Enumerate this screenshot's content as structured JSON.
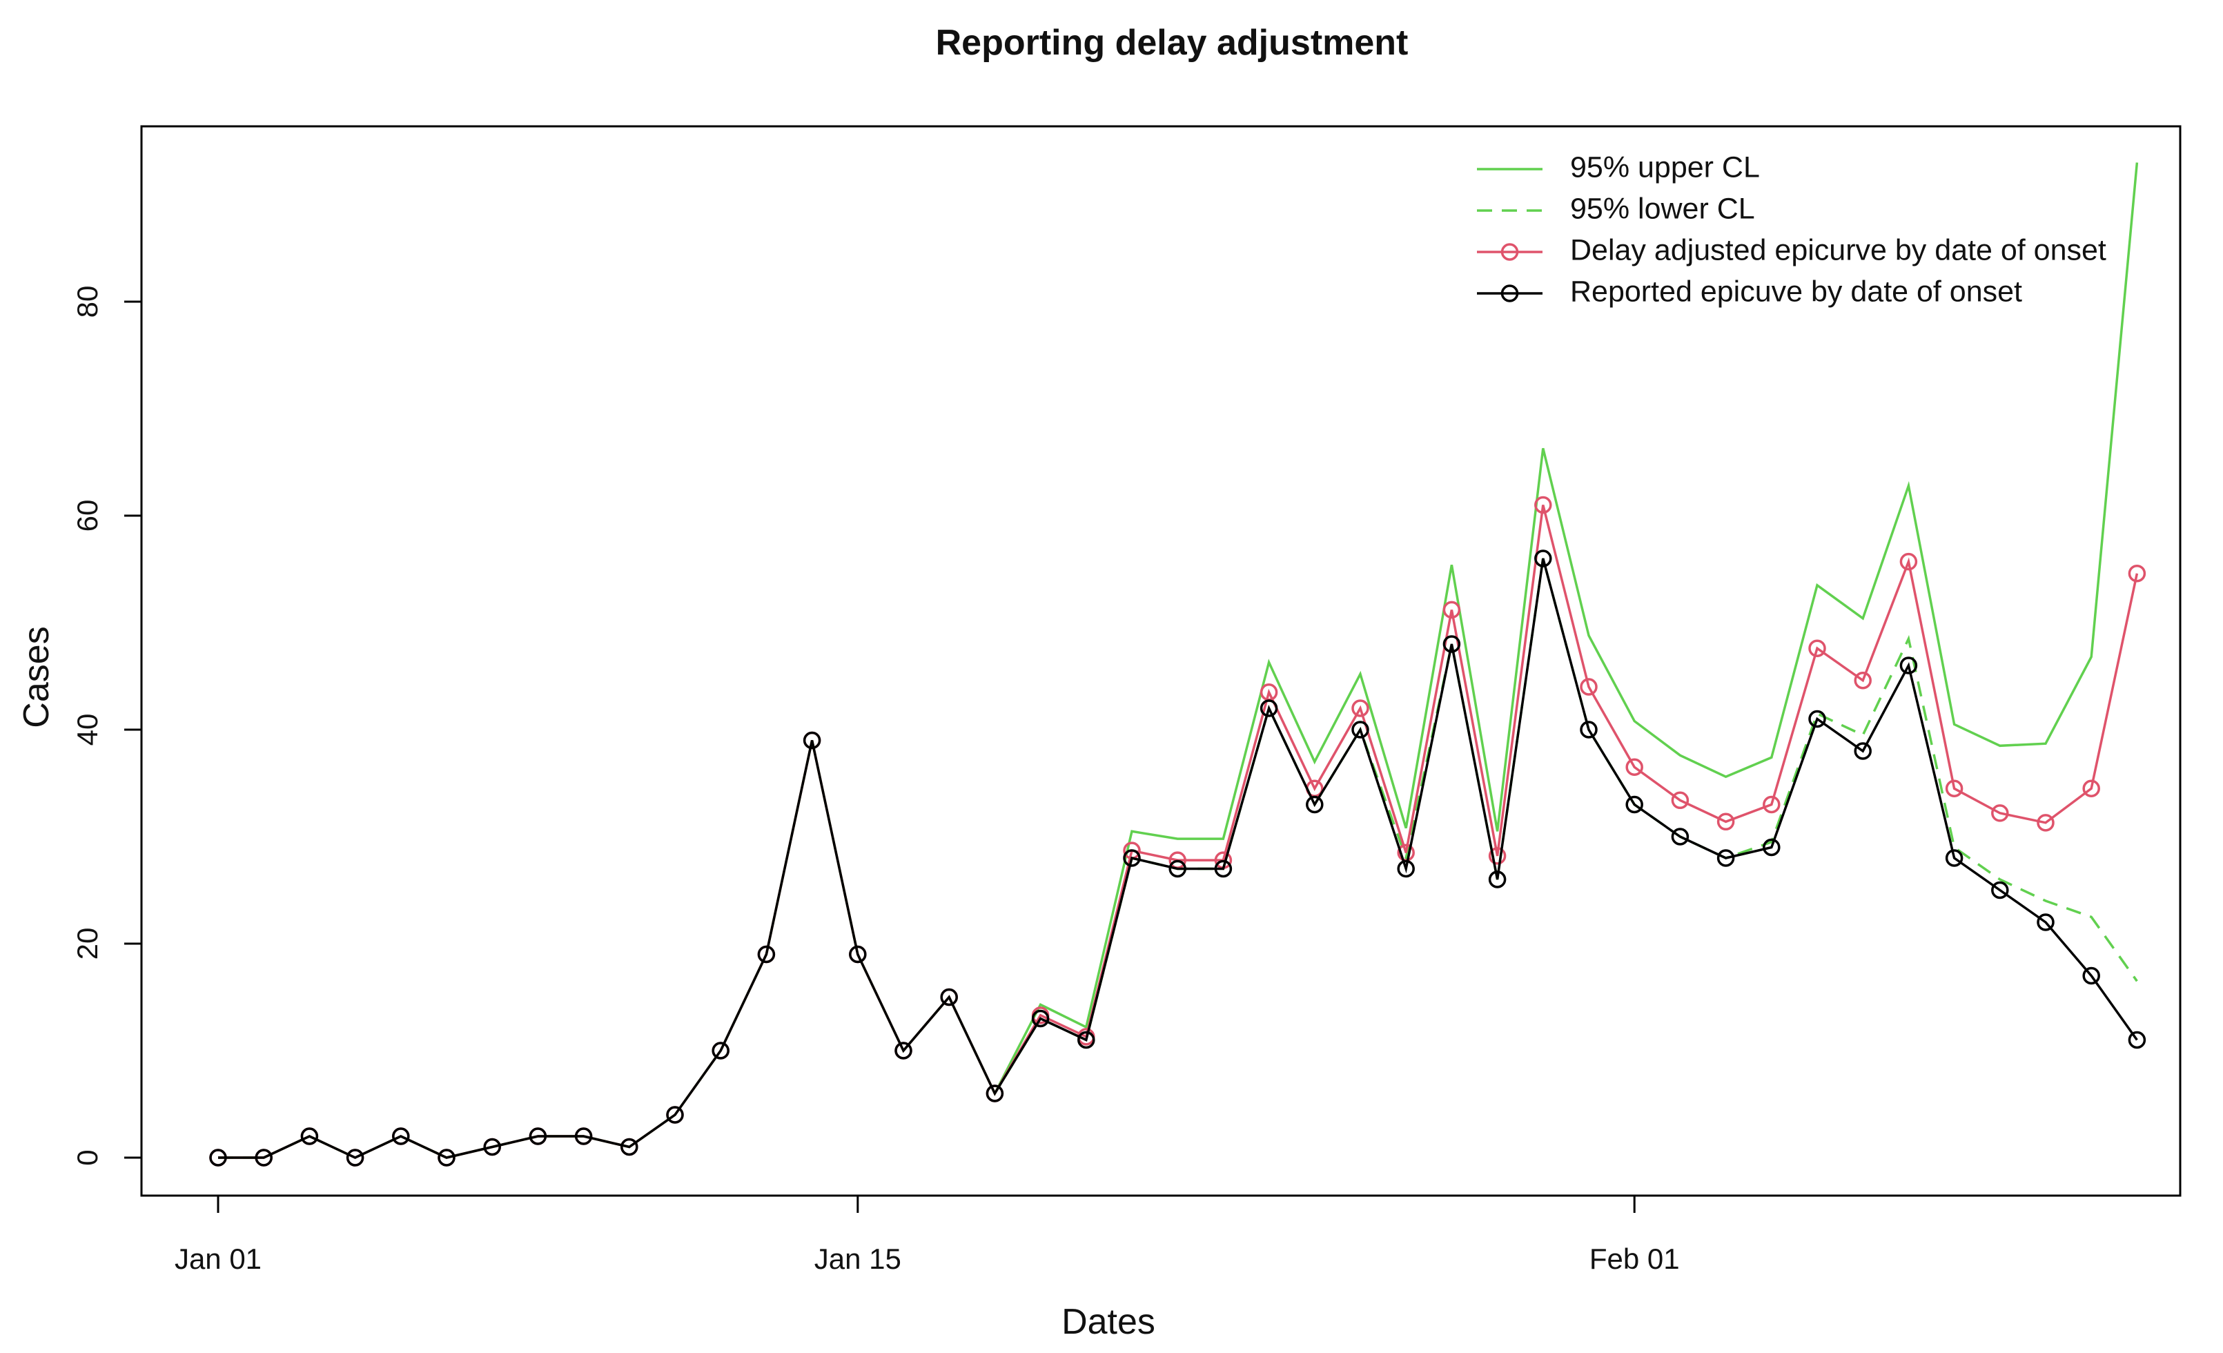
{
  "chart_data": {
    "type": "line",
    "title": "Reporting delay adjustment",
    "xlabel": "Dates",
    "ylabel": "Cases",
    "x_day_range": [
      1,
      43
    ],
    "ylim": [
      -4,
      96
    ],
    "x_ticks": [
      {
        "day": 1,
        "label": "Jan 01"
      },
      {
        "day": 15,
        "label": "Jan 15"
      },
      {
        "day": 32,
        "label": "Feb 01"
      }
    ],
    "y_ticks": [
      0,
      20,
      40,
      60,
      80
    ],
    "legend_position": "top-right",
    "series": [
      {
        "name": "95% upper CL",
        "color": "#61D04F",
        "line_style": "solid",
        "markers": false,
        "values": [
          0,
          0,
          2,
          0,
          2,
          0,
          1,
          2,
          2,
          1,
          4,
          10,
          19,
          39,
          19,
          10,
          15,
          6,
          14.3,
          12.2,
          30.5,
          29.8,
          29.8,
          46.3,
          37,
          45.2,
          30.8,
          55.4,
          30.5,
          66.3,
          48.8,
          40.8,
          37.6,
          35.6,
          37.4,
          53.5,
          50.4,
          62.8,
          40.5,
          38.5,
          38.7,
          46.8,
          93
        ]
      },
      {
        "name": "95% lower CL",
        "color": "#61D04F",
        "line_style": "dashed",
        "markers": false,
        "values": [
          0,
          0,
          2,
          0,
          2,
          0,
          1,
          2,
          2,
          1,
          4,
          10,
          19,
          39,
          19,
          10,
          15,
          6,
          13,
          11,
          28,
          27,
          27,
          42,
          33,
          40,
          28,
          48,
          26,
          56,
          40,
          33,
          30,
          28,
          29.5,
          41.5,
          39.5,
          48.5,
          29,
          26,
          24,
          22.5,
          16.5
        ]
      },
      {
        "name": "Delay adjusted epicurve by date of onset",
        "color": "#DF536B",
        "line_style": "solid",
        "markers": true,
        "values": [
          0,
          0,
          2,
          0,
          2,
          0,
          1,
          2,
          2,
          1,
          4,
          10,
          19,
          39,
          19,
          10,
          15,
          6,
          13.3,
          11.3,
          28.7,
          27.8,
          27.8,
          43.5,
          34.5,
          42,
          28.5,
          51.2,
          28.2,
          61,
          44,
          36.5,
          33.4,
          31.4,
          33,
          47.6,
          44.6,
          55.7,
          34.5,
          32.2,
          31.3,
          34.5,
          54.6
        ]
      },
      {
        "name": "Reported epicuve by date of onset",
        "color": "#000000",
        "line_style": "solid",
        "markers": true,
        "values": [
          0,
          0,
          2,
          0,
          2,
          0,
          1,
          2,
          2,
          1,
          4,
          10,
          19,
          39,
          19,
          10,
          15,
          6,
          13,
          11,
          28,
          27,
          27,
          42,
          33,
          40,
          27,
          48,
          26,
          56,
          40,
          33,
          30,
          28,
          29,
          41,
          38,
          46,
          28,
          25,
          22,
          17,
          11
        ]
      }
    ]
  }
}
